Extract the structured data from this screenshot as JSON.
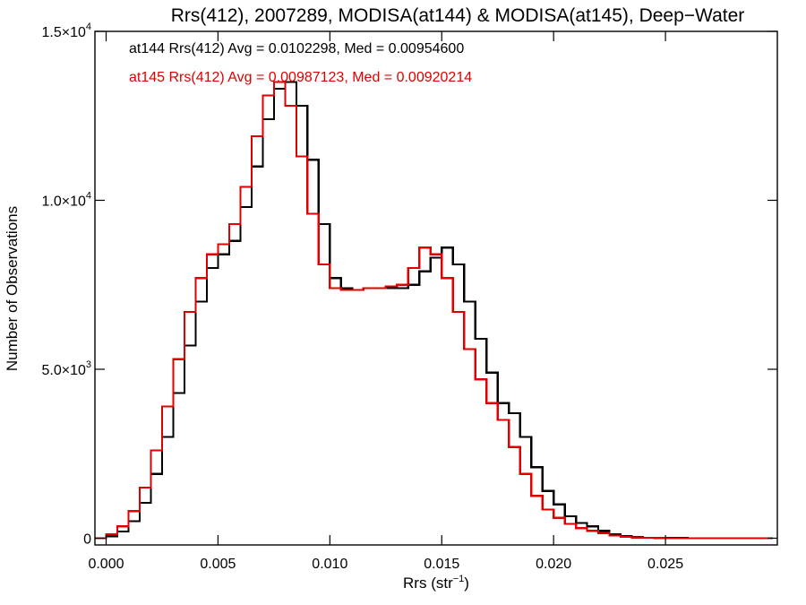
{
  "chart_data": {
    "type": "line",
    "style": "histogram-step",
    "title": "Rrs(412), 2007289, MODISA(at144) & MODISA(at145), Deep−Water",
    "xlabel": "Rrs (str",
    "xlabel_sup": "−1",
    "xlabel_close": ")",
    "ylabel": "Number of Observations",
    "xlim": [
      -0.0005,
      0.03
    ],
    "ylim": [
      -200,
      15000
    ],
    "xticks": [
      {
        "value": 0.0,
        "label": "0.000"
      },
      {
        "value": 0.005,
        "label": "0.005"
      },
      {
        "value": 0.01,
        "label": "0.010"
      },
      {
        "value": 0.015,
        "label": "0.015"
      },
      {
        "value": 0.02,
        "label": "0.020"
      },
      {
        "value": 0.025,
        "label": "0.025"
      }
    ],
    "yticks": [
      {
        "value": 0,
        "label": "0",
        "sup": ""
      },
      {
        "value": 5000,
        "label": "5.0×10",
        "sup": "3"
      },
      {
        "value": 10000,
        "label": "1.0×10",
        "sup": "4"
      },
      {
        "value": 15000,
        "label": "1.5×10",
        "sup": "4"
      }
    ],
    "grid": false,
    "annotations": [
      {
        "text": "at144 Rrs(412) Avg = 0.0102298, Med = 0.00954600",
        "color": "#000000"
      },
      {
        "text": "at145 Rrs(412) Avg = 0.00987123, Med = 0.00920214",
        "color": "#e00000"
      }
    ],
    "series": [
      {
        "id": "at144",
        "color": "#000000",
        "x": [
          -0.0005,
          0.0,
          0.0005,
          0.001,
          0.0015,
          0.002,
          0.0025,
          0.003,
          0.0035,
          0.004,
          0.0045,
          0.005,
          0.0055,
          0.006,
          0.0065,
          0.007,
          0.0075,
          0.008,
          0.0085,
          0.009,
          0.0095,
          0.01,
          0.0105,
          0.011,
          0.0115,
          0.012,
          0.0125,
          0.013,
          0.0135,
          0.014,
          0.0145,
          0.015,
          0.0155,
          0.016,
          0.0165,
          0.017,
          0.0175,
          0.018,
          0.0185,
          0.019,
          0.0195,
          0.02,
          0.0205,
          0.021,
          0.0215,
          0.022,
          0.0225,
          0.023,
          0.0235,
          0.024,
          0.0245,
          0.025,
          0.026,
          0.027,
          0.028,
          0.029,
          0.0298
        ],
        "y": [
          0,
          60,
          200,
          500,
          1050,
          1900,
          3000,
          4300,
          5700,
          7000,
          8000,
          8400,
          8800,
          9800,
          11000,
          12400,
          13300,
          13500,
          12800,
          11200,
          9300,
          7700,
          7400,
          7350,
          7400,
          7400,
          7400,
          7400,
          7500,
          7900,
          8300,
          8600,
          8100,
          7000,
          5900,
          4900,
          4000,
          3700,
          3000,
          2100,
          1400,
          1000,
          650,
          450,
          350,
          220,
          120,
          60,
          30,
          15,
          8,
          5,
          2,
          0,
          0,
          0,
          0
        ]
      },
      {
        "id": "at145",
        "color": "#e00000",
        "x": [
          -0.0005,
          0.0,
          0.0005,
          0.001,
          0.0015,
          0.002,
          0.0025,
          0.003,
          0.0035,
          0.004,
          0.0045,
          0.005,
          0.0055,
          0.006,
          0.0065,
          0.007,
          0.0075,
          0.008,
          0.0085,
          0.009,
          0.0095,
          0.01,
          0.0105,
          0.011,
          0.0115,
          0.012,
          0.0125,
          0.013,
          0.0135,
          0.014,
          0.0145,
          0.015,
          0.0155,
          0.016,
          0.0165,
          0.017,
          0.0175,
          0.018,
          0.0185,
          0.019,
          0.0195,
          0.02,
          0.0205,
          0.021,
          0.0215,
          0.022,
          0.0225,
          0.023,
          0.0235,
          0.024,
          0.0245,
          0.025,
          0.026,
          0.027,
          0.028,
          0.029,
          0.0298
        ],
        "y": [
          0,
          110,
          350,
          800,
          1500,
          2600,
          3900,
          5300,
          6700,
          7700,
          8400,
          8700,
          9300,
          10400,
          11900,
          13100,
          13500,
          12800,
          11300,
          9600,
          8100,
          7400,
          7350,
          7350,
          7400,
          7400,
          7450,
          7500,
          8000,
          8600,
          8400,
          7700,
          6700,
          5600,
          4700,
          4000,
          3500,
          2700,
          1900,
          1250,
          850,
          600,
          420,
          300,
          220,
          150,
          80,
          40,
          20,
          10,
          5,
          2,
          1,
          0,
          0,
          0,
          0
        ]
      }
    ]
  }
}
